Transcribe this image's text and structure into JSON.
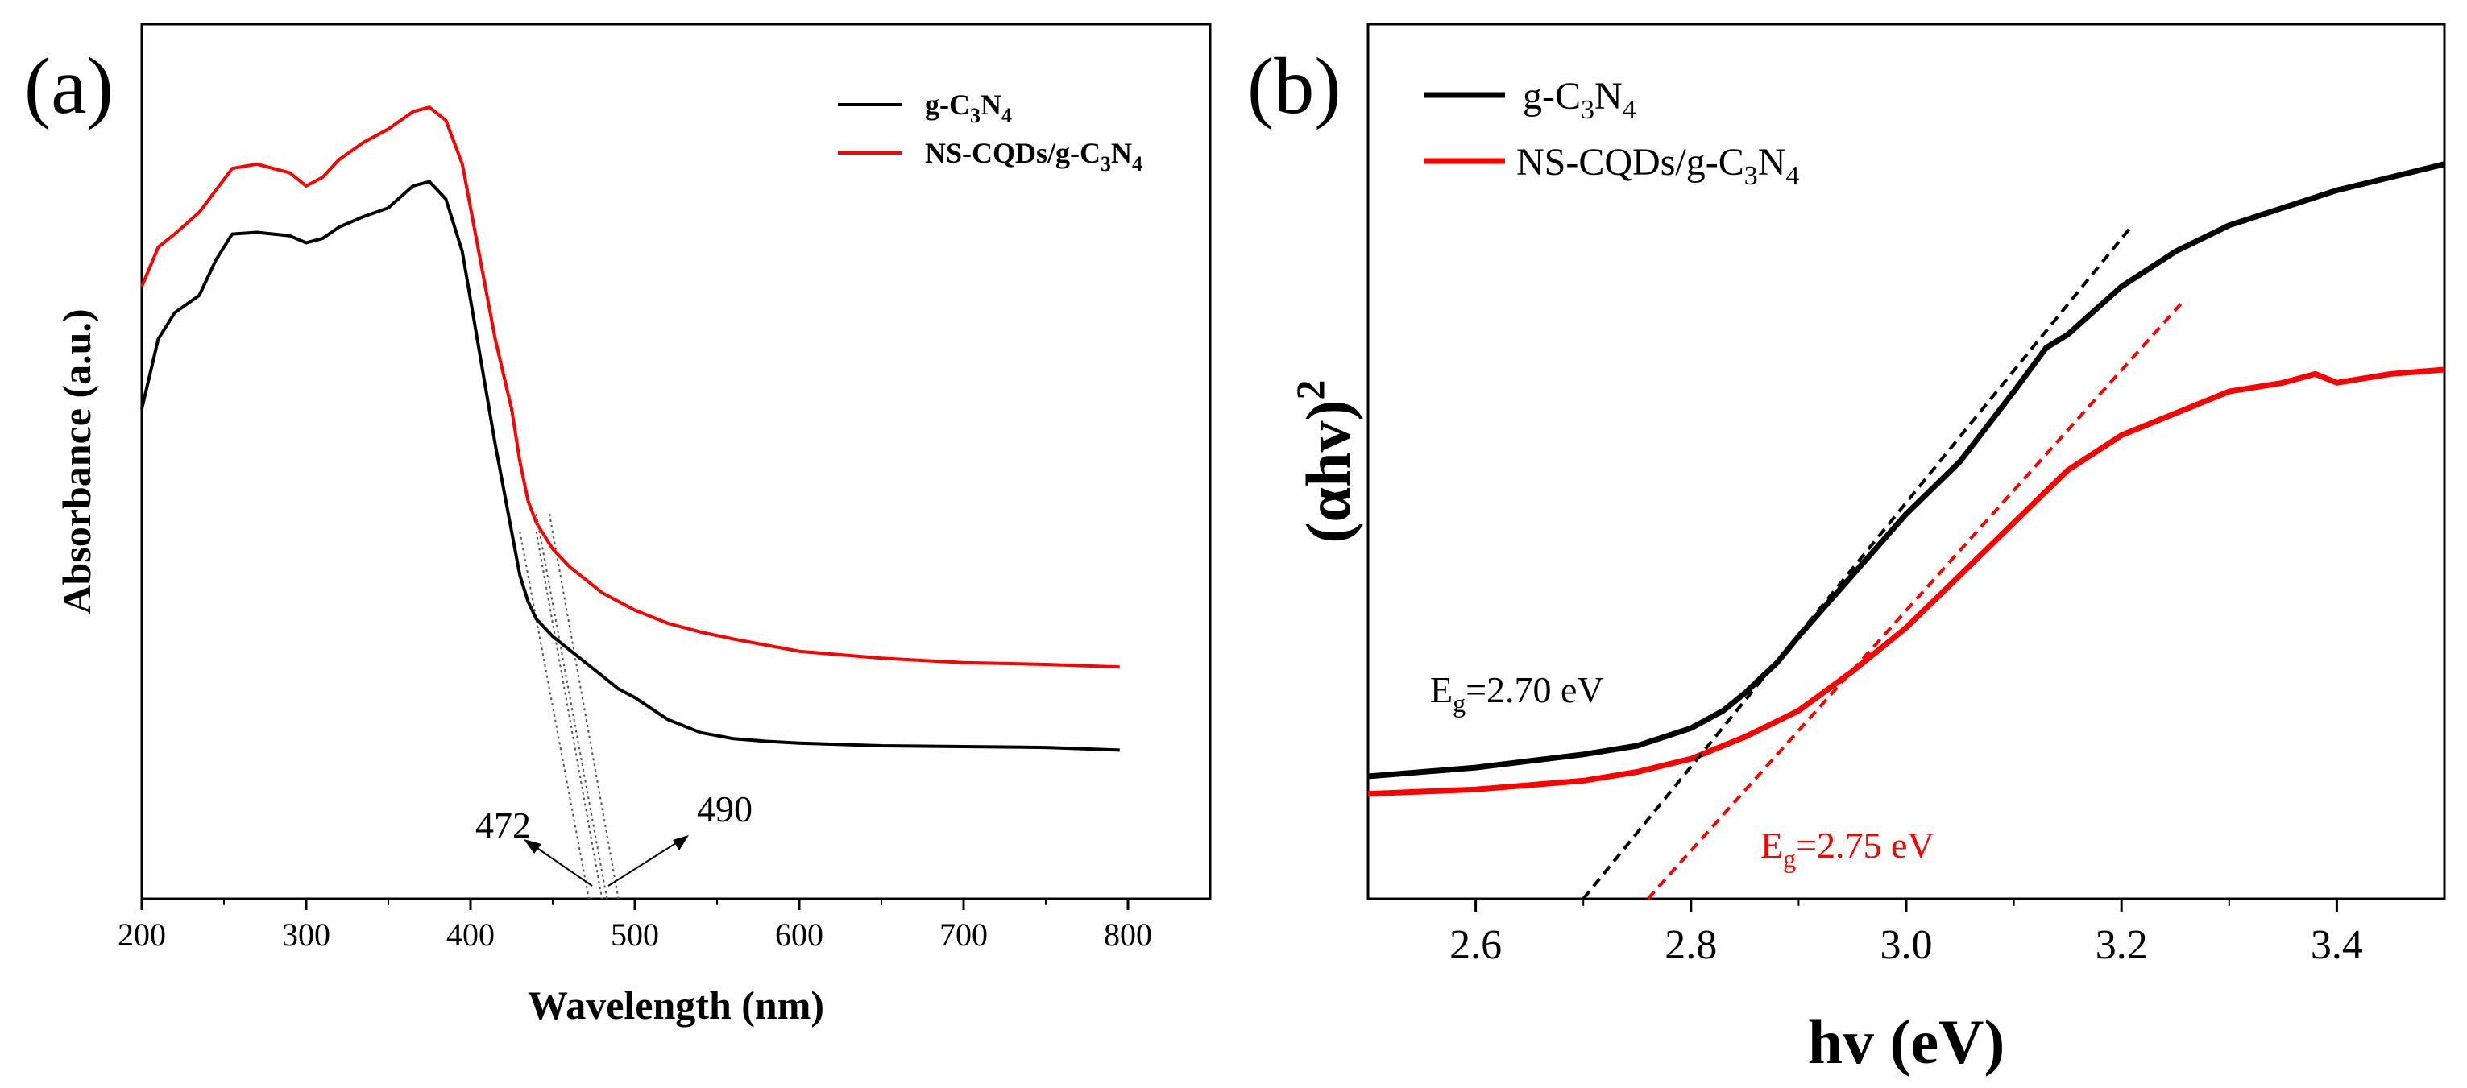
{
  "figure": {
    "panel_a_label": "(a)",
    "panel_b_label": "(b)"
  },
  "colors": {
    "g_C3N4": "#000000",
    "NS_CQDs": "#ff0000",
    "axis": "#000000"
  },
  "chart_data": [
    {
      "id": "a",
      "type": "line",
      "title": "",
      "xlabel": "Wavelength (nm)",
      "ylabel": "Absorbance (a.u.)",
      "xlim": [
        200,
        850
      ],
      "ylim": [
        0,
        1
      ],
      "xticks": [
        200,
        300,
        400,
        500,
        600,
        700,
        800
      ],
      "xtick_labels": [
        "200",
        "300",
        "400",
        "500",
        "600",
        "700",
        "800"
      ],
      "legend": {
        "position": "top-right",
        "entries": [
          {
            "base": "g-C",
            "sub1": "3",
            "mid": "N",
            "sub2": "4",
            "color": "#000000"
          },
          {
            "base": "NS-CQDs/g-C",
            "sub1": "3",
            "mid": "N",
            "sub2": "4",
            "color": "#ff0000"
          }
        ]
      },
      "series": [
        {
          "name": "g-C3N4",
          "color": "#000000",
          "x": [
            200,
            210,
            220,
            235,
            245,
            255,
            270,
            290,
            300,
            310,
            320,
            335,
            350,
            365,
            375,
            385,
            395,
            405,
            415,
            425,
            430,
            435,
            440,
            450,
            460,
            470,
            480,
            490,
            500,
            520,
            540,
            560,
            580,
            600,
            650,
            700,
            750,
            795
          ],
          "values": [
            0.56,
            0.64,
            0.67,
            0.69,
            0.73,
            0.76,
            0.762,
            0.758,
            0.75,
            0.755,
            0.768,
            0.78,
            0.79,
            0.815,
            0.82,
            0.8,
            0.74,
            0.63,
            0.52,
            0.42,
            0.37,
            0.34,
            0.32,
            0.3,
            0.285,
            0.27,
            0.255,
            0.24,
            0.23,
            0.205,
            0.19,
            0.183,
            0.18,
            0.178,
            0.175,
            0.174,
            0.173,
            0.17
          ]
        },
        {
          "name": "NS-CQDs/g-C3N4",
          "color": "#ff0000",
          "x": [
            200,
            210,
            220,
            235,
            245,
            255,
            270,
            290,
            300,
            310,
            320,
            335,
            350,
            365,
            375,
            385,
            395,
            405,
            415,
            425,
            430,
            435,
            440,
            450,
            460,
            470,
            480,
            490,
            500,
            520,
            540,
            560,
            580,
            600,
            650,
            700,
            750,
            795
          ],
          "values": [
            0.7,
            0.745,
            0.76,
            0.785,
            0.81,
            0.835,
            0.84,
            0.83,
            0.815,
            0.825,
            0.845,
            0.865,
            0.88,
            0.9,
            0.905,
            0.89,
            0.84,
            0.74,
            0.64,
            0.56,
            0.5,
            0.455,
            0.43,
            0.4,
            0.38,
            0.365,
            0.35,
            0.34,
            0.33,
            0.315,
            0.305,
            0.297,
            0.29,
            0.283,
            0.275,
            0.27,
            0.268,
            0.265
          ]
        }
      ],
      "annotations": [
        {
          "text": "472",
          "x": 472
        },
        {
          "text": "490",
          "x": 490
        }
      ],
      "tangents": [
        {
          "series": "g-C3N4",
          "x1": 430,
          "y1": 0.42,
          "x2": 472,
          "y2": 0.0
        },
        {
          "series": "g-C3N4",
          "x1": 440,
          "y1": 0.42,
          "x2": 480,
          "y2": 0.0
        },
        {
          "series": "NS-CQDs/g-C3N4",
          "x1": 440,
          "y1": 0.44,
          "x2": 483,
          "y2": 0.0
        },
        {
          "series": "NS-CQDs/g-C3N4",
          "x1": 448,
          "y1": 0.44,
          "x2": 490,
          "y2": 0.0
        }
      ]
    },
    {
      "id": "b",
      "type": "line",
      "title": "",
      "xlabel": "hv (eV)",
      "ylabel_base": "(αhv)",
      "ylabel_sup": "2",
      "xlim": [
        2.5,
        3.5
      ],
      "ylim": [
        0,
        1
      ],
      "xticks": [
        2.6,
        2.8,
        3.0,
        3.2,
        3.4
      ],
      "xtick_labels": [
        "2.6",
        "2.8",
        "3.0",
        "3.2",
        "3.4"
      ],
      "legend": {
        "position": "top-left",
        "entries": [
          {
            "base": "g-C",
            "sub1": "3",
            "mid": "N",
            "sub2": "4",
            "color": "#000000"
          },
          {
            "base": "NS-CQDs/g-C",
            "sub1": "3",
            "mid": "N",
            "sub2": "4",
            "color": "#ff0000"
          }
        ]
      },
      "series": [
        {
          "name": "g-C3N4",
          "color": "#000000",
          "x": [
            2.5,
            2.6,
            2.7,
            2.75,
            2.8,
            2.83,
            2.85,
            2.88,
            2.9,
            2.95,
            3.0,
            3.05,
            3.1,
            3.13,
            3.15,
            3.2,
            3.25,
            3.3,
            3.35,
            3.4,
            3.45,
            3.5
          ],
          "values": [
            0.14,
            0.15,
            0.165,
            0.175,
            0.195,
            0.215,
            0.235,
            0.27,
            0.3,
            0.37,
            0.44,
            0.5,
            0.58,
            0.63,
            0.645,
            0.7,
            0.74,
            0.77,
            0.79,
            0.81,
            0.825,
            0.84
          ]
        },
        {
          "name": "NS-CQDs/g-C3N4",
          "color": "#ff0000",
          "x": [
            2.5,
            2.6,
            2.7,
            2.75,
            2.8,
            2.85,
            2.9,
            2.95,
            3.0,
            3.05,
            3.1,
            3.15,
            3.2,
            3.25,
            3.3,
            3.35,
            3.38,
            3.4,
            3.45,
            3.5
          ],
          "values": [
            0.12,
            0.125,
            0.135,
            0.145,
            0.16,
            0.185,
            0.215,
            0.26,
            0.31,
            0.37,
            0.43,
            0.49,
            0.53,
            0.555,
            0.58,
            0.59,
            0.6,
            0.59,
            0.6,
            0.605
          ]
        }
      ],
      "annotations": [
        {
          "text_base": "E",
          "text_sub": "g",
          "text_rest": "=2.70 eV",
          "color": "#000000"
        },
        {
          "text_base": "E",
          "text_sub": "g",
          "text_rest": "=2.75 eV",
          "color": "#ff0000"
        }
      ],
      "tangents": [
        {
          "series": "g-C3N4",
          "x1": 2.7,
          "y1": 0.0,
          "x2": 3.21,
          "y2": 0.77,
          "color": "#000000"
        },
        {
          "series": "NS-CQDs/g-C3N4",
          "x1": 2.76,
          "y1": 0.0,
          "x2": 3.255,
          "y2": 0.68,
          "color": "#ff0000"
        }
      ]
    }
  ]
}
